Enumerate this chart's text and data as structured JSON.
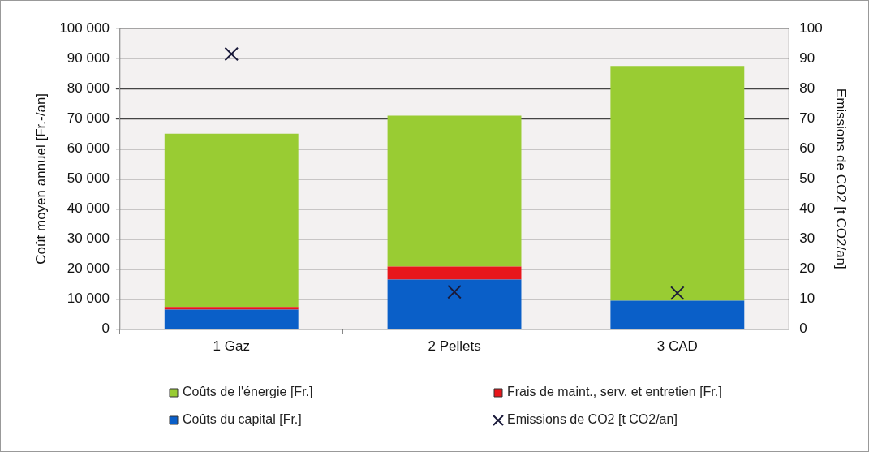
{
  "chart_data": {
    "type": "bar",
    "stacked": true,
    "categories": [
      "1 Gaz",
      "2 Pellets",
      "3 CAD"
    ],
    "ylabel": "Coût moyen annuel [Fr.-/an]",
    "y2label": "Emissions de CO2 [t CO2/an]",
    "ylim": [
      0,
      100000
    ],
    "yticks": [
      {
        "value": 0,
        "label": "0"
      },
      {
        "value": 10000,
        "label": "10 000"
      },
      {
        "value": 20000,
        "label": "20 000"
      },
      {
        "value": 30000,
        "label": "30 000"
      },
      {
        "value": 40000,
        "label": "40 000"
      },
      {
        "value": 50000,
        "label": "50 000"
      },
      {
        "value": 60000,
        "label": "60 000"
      },
      {
        "value": 70000,
        "label": "70 000"
      },
      {
        "value": 80000,
        "label": "80 000"
      },
      {
        "value": 90000,
        "label": "90 000"
      },
      {
        "value": 100000,
        "label": "100 000"
      }
    ],
    "y2lim": [
      0,
      100
    ],
    "y2ticks": [
      0,
      10,
      20,
      30,
      40,
      50,
      60,
      70,
      80,
      90,
      100
    ],
    "grid": "y",
    "legend": "bottom",
    "series": [
      {
        "name": "Coûts du capital [Fr.]",
        "color": "#0a5fc8",
        "values": [
          6500,
          16500,
          9500
        ]
      },
      {
        "name": "Frais de maint., serv. et entretien [Fr.]",
        "color": "#e8161b",
        "values": [
          900,
          4300,
          0
        ]
      },
      {
        "name": "Coûts de l'énergie [Fr.]",
        "color": "#99cc33",
        "values": [
          57600,
          50200,
          78000
        ]
      },
      {
        "name": "Emissions de CO2 [t CO2/an]",
        "type": "scatter",
        "axis": "y2",
        "marker": "cross",
        "color": "#1a1a3a",
        "values": [
          91.5,
          12.4,
          12
        ]
      }
    ]
  }
}
